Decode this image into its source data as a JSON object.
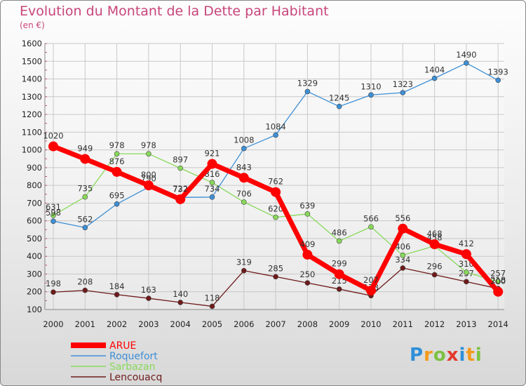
{
  "title": "Evolution du Montant de la Dette par Habitant",
  "subtitle": "(en €)",
  "chart_data": {
    "type": "line",
    "x": [
      2000,
      2001,
      2002,
      2003,
      2004,
      2005,
      2006,
      2007,
      2008,
      2009,
      2010,
      2011,
      2012,
      2013,
      2014
    ],
    "ylim": [
      100,
      1600
    ],
    "yticks": [
      100,
      200,
      300,
      400,
      500,
      600,
      700,
      800,
      900,
      1000,
      1100,
      1200,
      1300,
      1400,
      1500,
      1600
    ],
    "grid": true,
    "legend_position": "bottom-left",
    "series": [
      {
        "name": "Lencouacq",
        "color": "#6e1a1a",
        "values": [
          198,
          208,
          184,
          163,
          140,
          118,
          319,
          285,
          250,
          215,
          178,
          334,
          296,
          257,
          218
        ]
      },
      {
        "name": "Sarbazan",
        "color": "#88d95a",
        "values": [
          631,
          735,
          978,
          978,
          897,
          816,
          706,
          620,
          639,
          486,
          566,
          406,
          458,
          310,
          257
        ]
      },
      {
        "name": "Roquefort",
        "color": "#3d8fd6",
        "values": [
          598,
          562,
          695,
          790,
          732,
          734,
          1008,
          1084,
          1329,
          1245,
          1310,
          1323,
          1404,
          1490,
          1393
        ]
      },
      {
        "name": "ARUE",
        "color": "#ff0000",
        "values": [
          1020,
          949,
          876,
          800,
          722,
          921,
          843,
          762,
          409,
          299,
          207,
          556,
          468,
          412,
          200
        ]
      }
    ]
  },
  "legend": [
    {
      "name": "ARUE",
      "color": "#ff0000"
    },
    {
      "name": "Roquefort",
      "color": "#3d8fd6"
    },
    {
      "name": "Sarbazan",
      "color": "#88d95a"
    },
    {
      "name": "Lencouacq",
      "color": "#6e1a1a"
    }
  ],
  "logo": {
    "letters": [
      "P",
      "r",
      "o",
      "x",
      "i",
      "t",
      "i"
    ],
    "colors": [
      "#2f8fd8",
      "#f39a1b",
      "#7cc142",
      "#e23a2d",
      "#2f8fd8",
      "#f39a1b",
      "#7cc142"
    ]
  }
}
